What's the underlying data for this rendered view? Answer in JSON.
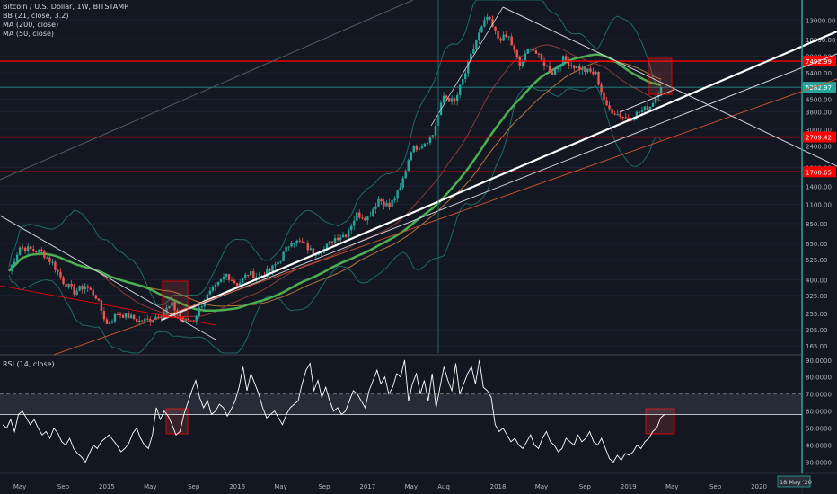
{
  "legend": {
    "main_title": "Bitcoin / U.S. Dollar, 1W, BITSTAMP",
    "bb": "BB (21, close, 3.2)",
    "ma200": "MA (200, close)",
    "ma50": "MA (50, close)",
    "rsi": "RSI (14, close)"
  },
  "colors": {
    "background": "#131722",
    "up_candle": "#26a69a",
    "down_candle": "#ef5350",
    "red_level": "#ff0000",
    "trendline": "#ffffff",
    "ma50": "#4caf50",
    "ma200": "#b5763a",
    "bollinger": "#1f6b68",
    "rsi_line": "#ffffff",
    "current_price_line": "#26a69a"
  },
  "chart_data": [
    {
      "type": "candlestick",
      "title": "Bitcoin / U.S. Dollar, 1W, BITSTAMP",
      "scale": "log",
      "ylim": [
        150,
        17000
      ],
      "y_ticks": [
        "13000.00",
        "10000.00",
        "8000.00",
        "6400.00",
        "4500.00",
        "3800.00",
        "3000.00",
        "2400.00",
        "1800.00",
        "1400.00",
        "1100.00",
        "850.00",
        "650.00",
        "525.00",
        "400.00",
        "325.00",
        "255.00",
        "205.00",
        "165.00"
      ],
      "x_ticks": [
        "May",
        "Sep",
        "2015",
        "May",
        "Sep",
        "2016",
        "May",
        "Sep",
        "2017",
        "May",
        "Aug",
        "2018",
        "May",
        "Sep",
        "2019",
        "May",
        "Sep",
        "2020"
      ],
      "price_labels": [
        {
          "value": "7492.99",
          "role": "level"
        },
        {
          "value": "5282.97",
          "role": "last_price"
        },
        {
          "value": "2709.42",
          "role": "level"
        },
        {
          "value": "1700.65",
          "role": "level"
        }
      ],
      "horizontal_levels": [
        7492.99,
        2709.42,
        1700.65
      ],
      "close_series": [
        {
          "date": "2014-04",
          "close": 450
        },
        {
          "date": "2014-05",
          "close": 620
        },
        {
          "date": "2014-06",
          "close": 600
        },
        {
          "date": "2014-07",
          "close": 580
        },
        {
          "date": "2014-08",
          "close": 500
        },
        {
          "date": "2014-09",
          "close": 390
        },
        {
          "date": "2014-10",
          "close": 340
        },
        {
          "date": "2014-11",
          "close": 370
        },
        {
          "date": "2014-12",
          "close": 320
        },
        {
          "date": "2015-01",
          "close": 220
        },
        {
          "date": "2015-02",
          "close": 255
        },
        {
          "date": "2015-03",
          "close": 245
        },
        {
          "date": "2015-04",
          "close": 230
        },
        {
          "date": "2015-05",
          "close": 235
        },
        {
          "date": "2015-06",
          "close": 255
        },
        {
          "date": "2015-07",
          "close": 285
        },
        {
          "date": "2015-08",
          "close": 230
        },
        {
          "date": "2015-09",
          "close": 235
        },
        {
          "date": "2015-10",
          "close": 310
        },
        {
          "date": "2015-11",
          "close": 360
        },
        {
          "date": "2015-12",
          "close": 430
        },
        {
          "date": "2016-01",
          "close": 375
        },
        {
          "date": "2016-02",
          "close": 435
        },
        {
          "date": "2016-03",
          "close": 415
        },
        {
          "date": "2016-04",
          "close": 450
        },
        {
          "date": "2016-05",
          "close": 530
        },
        {
          "date": "2016-06",
          "close": 680
        },
        {
          "date": "2016-07",
          "close": 650
        },
        {
          "date": "2016-08",
          "close": 575
        },
        {
          "date": "2016-09",
          "close": 605
        },
        {
          "date": "2016-10",
          "close": 700
        },
        {
          "date": "2016-11",
          "close": 740
        },
        {
          "date": "2016-12",
          "close": 960
        },
        {
          "date": "2017-01",
          "close": 920
        },
        {
          "date": "2017-02",
          "close": 1180
        },
        {
          "date": "2017-03",
          "close": 1070
        },
        {
          "date": "2017-04",
          "close": 1350
        },
        {
          "date": "2017-05",
          "close": 2300
        },
        {
          "date": "2017-06",
          "close": 2450
        },
        {
          "date": "2017-07",
          "close": 2800
        },
        {
          "date": "2017-08",
          "close": 4700
        },
        {
          "date": "2017-09",
          "close": 4300
        },
        {
          "date": "2017-10",
          "close": 6400
        },
        {
          "date": "2017-11",
          "close": 10000
        },
        {
          "date": "2017-12",
          "close": 13500
        },
        {
          "date": "2018-01",
          "close": 10200
        },
        {
          "date": "2018-02",
          "close": 10300
        },
        {
          "date": "2018-03",
          "close": 7000
        },
        {
          "date": "2018-04",
          "close": 9200
        },
        {
          "date": "2018-05",
          "close": 7500
        },
        {
          "date": "2018-06",
          "close": 6400
        },
        {
          "date": "2018-07",
          "close": 7700
        },
        {
          "date": "2018-08",
          "close": 7000
        },
        {
          "date": "2018-09",
          "close": 6600
        },
        {
          "date": "2018-10",
          "close": 6300
        },
        {
          "date": "2018-11",
          "close": 4000
        },
        {
          "date": "2018-12",
          "close": 3700
        },
        {
          "date": "2019-01",
          "close": 3450
        },
        {
          "date": "2019-02",
          "close": 3800
        },
        {
          "date": "2019-03",
          "close": 4100
        },
        {
          "date": "2019-04",
          "close": 5282.97
        }
      ]
    },
    {
      "type": "line",
      "title": "RSI (14, close)",
      "ylim": [
        25,
        92
      ],
      "y_ticks": [
        "90.0000",
        "80.0000",
        "70.0000",
        "60.0000",
        "50.0000",
        "40.0000",
        "30.0000"
      ],
      "bands": [
        70,
        58
      ],
      "values": [
        52,
        50,
        55,
        48,
        58,
        60,
        56,
        52,
        55,
        50,
        46,
        48,
        44,
        50,
        47,
        42,
        40,
        44,
        38,
        35,
        33,
        30,
        35,
        40,
        38,
        42,
        44,
        46,
        43,
        40,
        36,
        38,
        41,
        47,
        50,
        44,
        40,
        38,
        46,
        62,
        55,
        60,
        57,
        52,
        46,
        48,
        58,
        65,
        72,
        78,
        68,
        62,
        66,
        58,
        60,
        64,
        62,
        57,
        61,
        66,
        74,
        86,
        72,
        82,
        76,
        70,
        62,
        56,
        58,
        60,
        56,
        52,
        58,
        62,
        64,
        66,
        76,
        84,
        88,
        72,
        78,
        68,
        74,
        66,
        60,
        62,
        58,
        60,
        66,
        72,
        70,
        66,
        62,
        72,
        78,
        84,
        76,
        80,
        70,
        74,
        82,
        80,
        90,
        66,
        76,
        82,
        70,
        78,
        66,
        82,
        62,
        74,
        86,
        78,
        72,
        88,
        70,
        76,
        82,
        86,
        76,
        90,
        74,
        72,
        68,
        52,
        48,
        50,
        46,
        42,
        44,
        40,
        38,
        42,
        46,
        40,
        38,
        44,
        48,
        42,
        40,
        36,
        38,
        44,
        42,
        40,
        46,
        42,
        44,
        48,
        42,
        40,
        44,
        38,
        32,
        30,
        34,
        31,
        35,
        34,
        36,
        40,
        38,
        42,
        44,
        48,
        50,
        56,
        58
      ]
    }
  ],
  "date_badge": "18 May '20"
}
